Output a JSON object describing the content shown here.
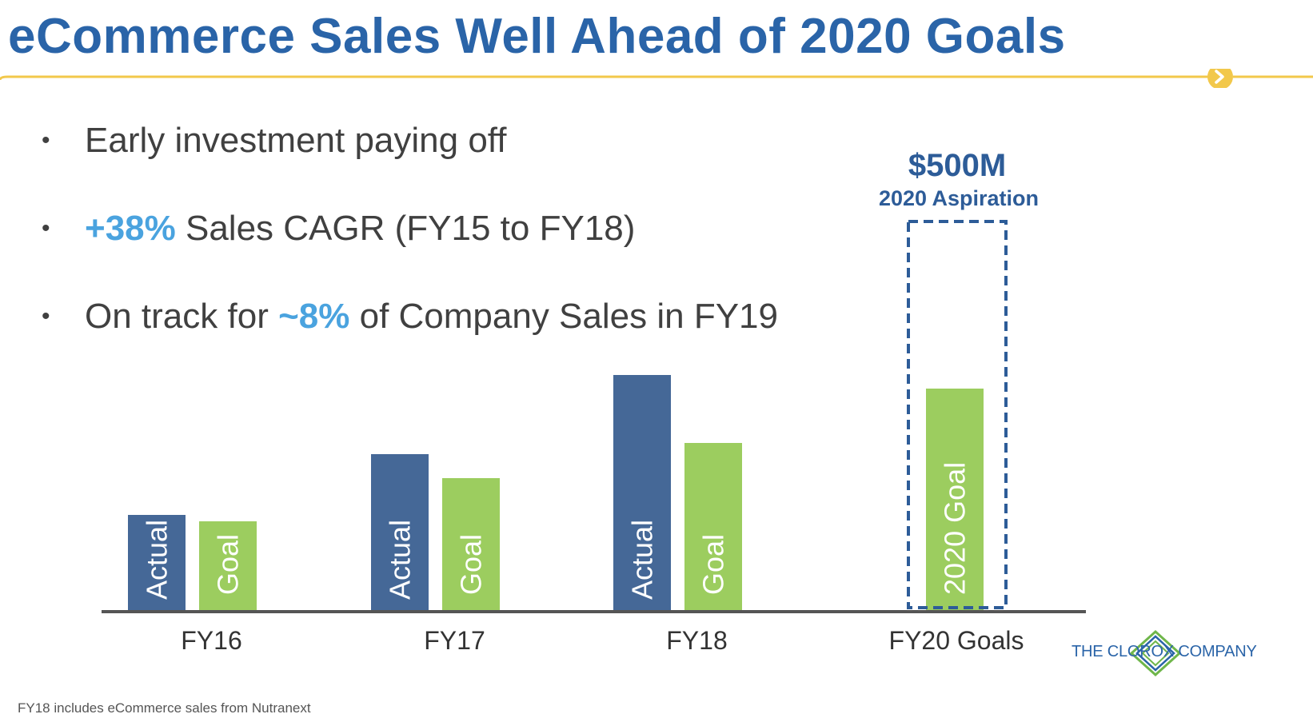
{
  "slide": {
    "title": "eCommerce Sales Well Ahead of 2020 Goals",
    "footnote": "FY18 includes eCommerce sales from Nutranext",
    "logo_text": "THE CLOROX COMPANY"
  },
  "bullets": [
    {
      "pre": "Early investment paying off",
      "highlight": "",
      "post": ""
    },
    {
      "pre": "",
      "highlight": "+38%",
      "post": " Sales CAGR (FY15 to FY18)"
    },
    {
      "pre": "On track for ",
      "highlight": "~8%",
      "post": " of Company Sales in FY19"
    }
  ],
  "colors": {
    "title": "#2a64a8",
    "actual": "#456897",
    "goal": "#9ccd5f",
    "highlight": "#4aa3df",
    "accent_line": "#f2c84b",
    "aspiration_box": "#2d5c98"
  },
  "chart_data": {
    "type": "bar",
    "categories": [
      "FY16",
      "FY17",
      "FY18",
      "FY20 Goals"
    ],
    "series": [
      {
        "name": "Actual",
        "values": [
          120,
          196,
          295,
          null
        ]
      },
      {
        "name": "Goal",
        "values": [
          112,
          166,
          210,
          278
        ]
      }
    ],
    "bar_labels": {
      "actual": "Actual",
      "goal": "Goal",
      "fy20_goal": "2020 Goal"
    },
    "aspiration": {
      "value": "$500M",
      "label": "2020 Aspiration",
      "level": 487
    },
    "ylim": [
      0,
      500
    ],
    "grid": false,
    "legend": "none",
    "xlabel": "",
    "ylabel": ""
  }
}
